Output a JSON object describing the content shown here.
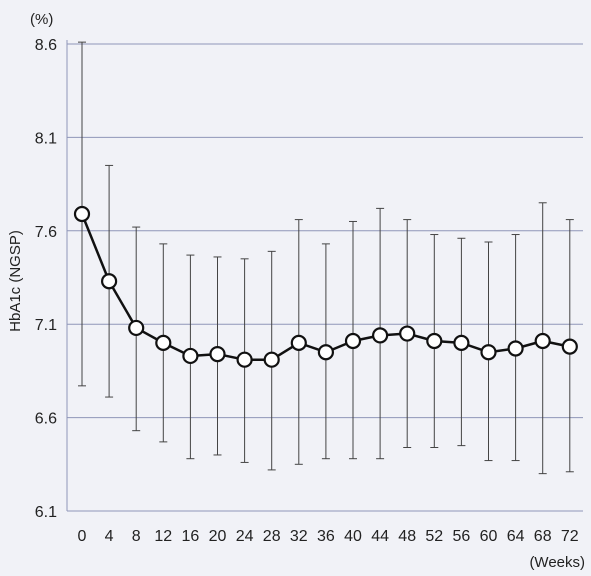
{
  "chart_data": {
    "type": "line",
    "title": "",
    "xlabel": "(Weeks)",
    "ylabel": "HbA1c (NGSP)",
    "yunit": "(%)",
    "ylim": [
      6.1,
      8.6
    ],
    "yticks": [
      "6.1",
      "6.6",
      "7.1",
      "7.6",
      "8.1",
      "8.6"
    ],
    "grid": "horizontal",
    "categories": [
      "0",
      "4",
      "8",
      "12",
      "16",
      "20",
      "24",
      "28",
      "32",
      "36",
      "40",
      "44",
      "48",
      "52",
      "56",
      "60",
      "64",
      "68",
      "72"
    ],
    "series": [
      {
        "values": [
          7.69,
          7.33,
          7.08,
          7.0,
          6.93,
          6.94,
          6.91,
          6.91,
          7.0,
          6.95,
          7.01,
          7.04,
          7.05,
          7.01,
          7.0,
          6.95,
          6.97,
          7.01,
          6.98
        ],
        "error_lower": [
          6.77,
          6.71,
          6.53,
          6.47,
          6.38,
          6.4,
          6.36,
          6.32,
          6.35,
          6.38,
          6.38,
          6.38,
          6.44,
          6.44,
          6.45,
          6.37,
          6.37,
          6.3,
          6.31
        ],
        "error_upper": [
          8.61,
          7.95,
          7.62,
          7.53,
          7.47,
          7.46,
          7.45,
          7.49,
          7.66,
          7.53,
          7.65,
          7.72,
          7.66,
          7.58,
          7.56,
          7.54,
          7.58,
          7.75,
          7.66
        ]
      }
    ],
    "colors": {
      "background": "#f1f2f7",
      "grid": "#8f96b8",
      "line": "#111111",
      "marker_fill": "#ffffff",
      "error_bar": "#444444"
    }
  }
}
